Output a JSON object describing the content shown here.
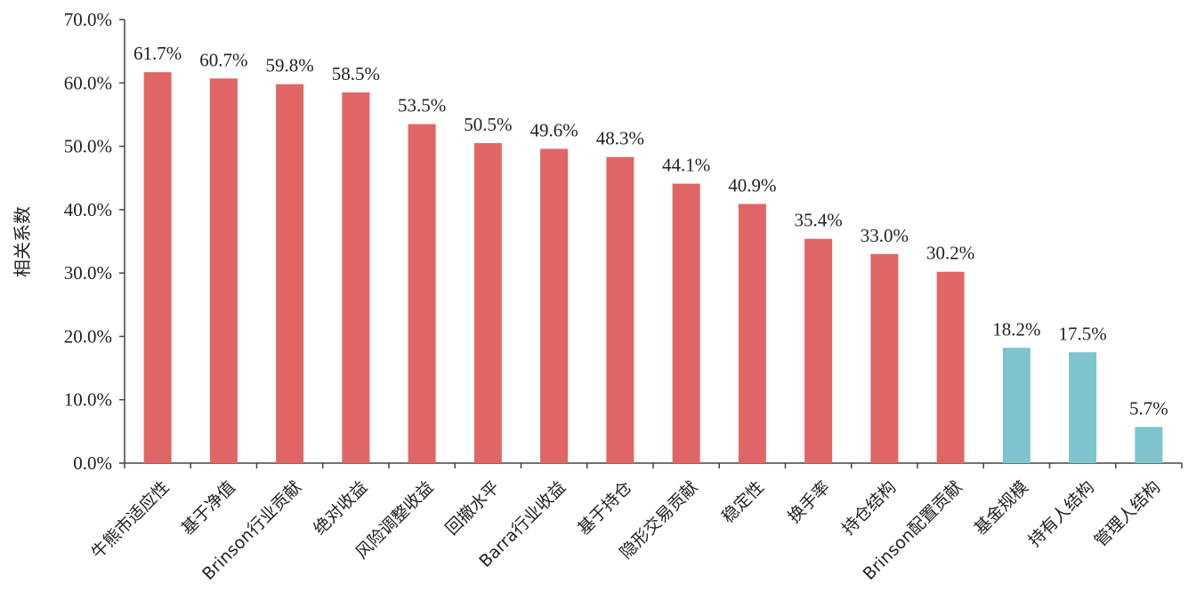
{
  "chart_data": {
    "type": "bar",
    "title": "",
    "xlabel": "",
    "ylabel": "相关系数",
    "ylim": [
      0,
      70
    ],
    "yticks": [
      "0.0%",
      "10.0%",
      "20.0%",
      "30.0%",
      "40.0%",
      "50.0%",
      "60.0%",
      "70.0%"
    ],
    "grid": false,
    "legend": "none",
    "categories": [
      "牛熊市适应性",
      "基于净值",
      "Brinson行业贡献",
      "绝对收益",
      "风险调整收益",
      "回撤水平",
      "Barra行业收益",
      "基于持仓",
      "隐形交易贡献",
      "稳定性",
      "换手率",
      "持仓结构",
      "Brinson配置贡献",
      "基金规模",
      "持有人结构",
      "管理人结构"
    ],
    "values": [
      61.7,
      60.7,
      59.8,
      58.5,
      53.5,
      50.5,
      49.6,
      48.3,
      44.1,
      40.9,
      35.4,
      33.0,
      30.2,
      18.2,
      17.5,
      5.7
    ],
    "value_labels": [
      "61.7%",
      "60.7%",
      "59.8%",
      "58.5%",
      "53.5%",
      "50.5%",
      "49.6%",
      "48.3%",
      "44.1%",
      "40.9%",
      "35.4%",
      "33.0%",
      "30.2%",
      "18.2%",
      "17.5%",
      "5.7%"
    ],
    "bar_colors": [
      "#E06666",
      "#E06666",
      "#E06666",
      "#E06666",
      "#E06666",
      "#E06666",
      "#E06666",
      "#E06666",
      "#E06666",
      "#E06666",
      "#E06666",
      "#E06666",
      "#E06666",
      "#7EC4CC",
      "#7EC4CC",
      "#7EC4CC"
    ],
    "axis_color": "#444444"
  }
}
